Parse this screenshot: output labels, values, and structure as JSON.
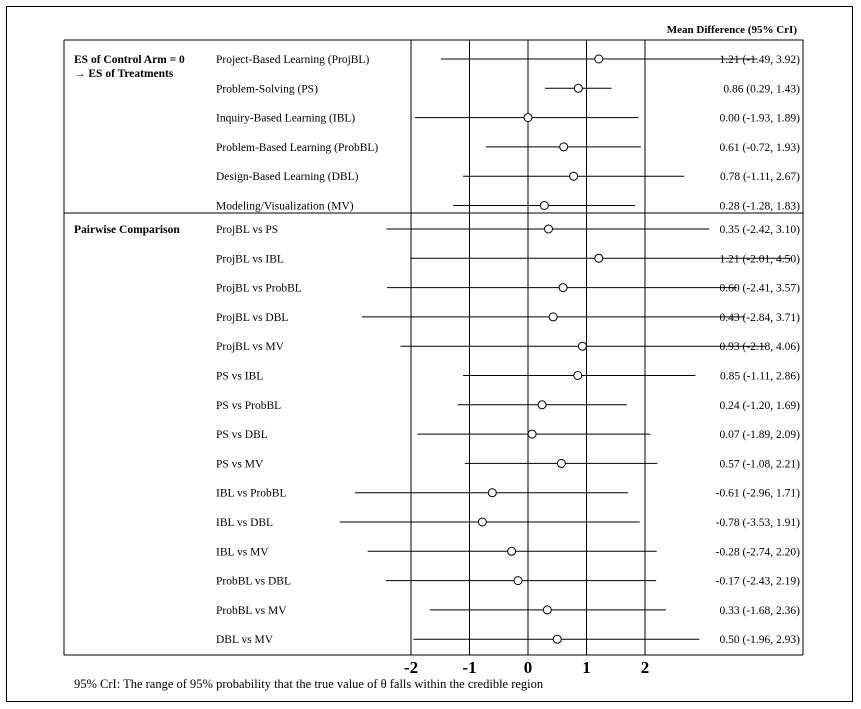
{
  "chart_data": {
    "type": "forest",
    "header": "Mean Difference (95% CrI)",
    "groups": [
      {
        "title": "ES of Control Arm = 0",
        "subtitle": "→ ES of Treatments",
        "rows": [
          {
            "label": "Project-Based Learning (ProjBL)",
            "mean": 1.21,
            "lower": -1.49,
            "upper": 3.92,
            "text": "1.21 (-1.49, 3.92)"
          },
          {
            "label": "Problem-Solving (PS)",
            "mean": 0.86,
            "lower": 0.29,
            "upper": 1.43,
            "text": "0.86 (0.29, 1.43)"
          },
          {
            "label": "Inquiry-Based Learning (IBL)",
            "mean": 0.0,
            "lower": -1.93,
            "upper": 1.89,
            "text": "0.00 (-1.93, 1.89)"
          },
          {
            "label": "Problem-Based Learning (ProbBL)",
            "mean": 0.61,
            "lower": -0.72,
            "upper": 1.93,
            "text": "0.61 (-0.72, 1.93)"
          },
          {
            "label": "Design-Based Learning (DBL)",
            "mean": 0.78,
            "lower": -1.11,
            "upper": 2.67,
            "text": "0.78 (-1.11, 2.67)"
          },
          {
            "label": "Modeling/Visualization (MV)",
            "mean": 0.28,
            "lower": -1.28,
            "upper": 1.83,
            "text": "0.28 (-1.28, 1.83)"
          }
        ]
      },
      {
        "title": "Pairwise Comparison",
        "subtitle": "",
        "rows": [
          {
            "label": "ProjBL vs PS",
            "mean": 0.35,
            "lower": -2.42,
            "upper": 3.1,
            "text": "0.35 (-2.42, 3.10)"
          },
          {
            "label": "ProjBL vs IBL",
            "mean": 1.21,
            "lower": -2.01,
            "upper": 4.5,
            "text": "1.21 (-2.01, 4.50)"
          },
          {
            "label": "ProjBL vs ProbBL",
            "mean": 0.6,
            "lower": -2.41,
            "upper": 3.57,
            "text": "0.60 (-2.41, 3.57)"
          },
          {
            "label": "ProjBL vs DBL",
            "mean": 0.43,
            "lower": -2.84,
            "upper": 3.71,
            "text": "0.43 (-2.84, 3.71)"
          },
          {
            "label": "ProjBL vs MV",
            "mean": 0.93,
            "lower": -2.18,
            "upper": 4.06,
            "text": "0.93 (-2.18, 4.06)"
          },
          {
            "label": "PS vs IBL",
            "mean": 0.85,
            "lower": -1.11,
            "upper": 2.86,
            "text": "0.85 (-1.11, 2.86)"
          },
          {
            "label": "PS vs ProbBL",
            "mean": 0.24,
            "lower": -1.2,
            "upper": 1.69,
            "text": "0.24 (-1.20, 1.69)"
          },
          {
            "label": "PS vs DBL",
            "mean": 0.07,
            "lower": -1.89,
            "upper": 2.09,
            "text": "0.07 (-1.89, 2.09)"
          },
          {
            "label": "PS vs MV",
            "mean": 0.57,
            "lower": -1.08,
            "upper": 2.21,
            "text": "0.57 (-1.08, 2.21)"
          },
          {
            "label": "IBL vs ProbBL",
            "mean": -0.61,
            "lower": -2.96,
            "upper": 1.71,
            "text": "-0.61 (-2.96, 1.71)"
          },
          {
            "label": "IBL vs DBL",
            "mean": -0.78,
            "lower": -3.53,
            "upper": 1.91,
            "text": "-0.78 (-3.53, 1.91)"
          },
          {
            "label": "IBL vs MV",
            "mean": -0.28,
            "lower": -2.74,
            "upper": 2.2,
            "text": "-0.28 (-2.74, 2.20)"
          },
          {
            "label": "ProbBL vs DBL",
            "mean": -0.17,
            "lower": -2.43,
            "upper": 2.19,
            "text": "-0.17 (-2.43, 2.19)"
          },
          {
            "label": "ProbBL vs MV",
            "mean": 0.33,
            "lower": -1.68,
            "upper": 2.36,
            "text": "0.33 (-1.68, 2.36)"
          },
          {
            "label": "DBL vs MV",
            "mean": 0.5,
            "lower": -1.96,
            "upper": 2.93,
            "text": "0.50 (-1.96, 2.93)"
          }
        ]
      }
    ],
    "x_ticks": [
      -2,
      -1,
      0,
      1,
      2
    ],
    "reference_lines": [
      -2,
      -1,
      0,
      1,
      2
    ],
    "xlim": [
      -3.1,
      3.0
    ],
    "footnote": "95% CrI: The range of 95% probability that the true value of θ falls within the credible region"
  }
}
